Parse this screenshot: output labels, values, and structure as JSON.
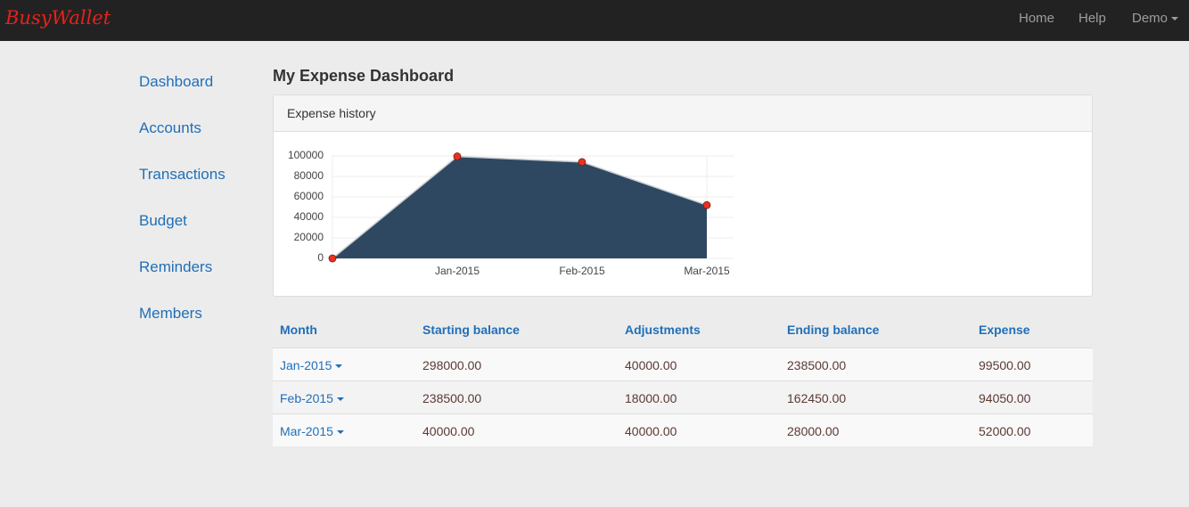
{
  "navbar": {
    "brand": "BusyWallet",
    "links": [
      "Home",
      "Help",
      "Demo"
    ]
  },
  "sidebar": {
    "items": [
      "Dashboard",
      "Accounts",
      "Transactions",
      "Budget",
      "Reminders",
      "Members"
    ]
  },
  "page_title": "My Expense Dashboard",
  "panel_title": "Expense history",
  "chart_data": {
    "type": "area",
    "categories": [
      null,
      "Jan-2015",
      "Feb-2015",
      "Mar-2015"
    ],
    "values": [
      0,
      99500,
      94050,
      52000
    ],
    "color": "#2e4862",
    "line_color": "#c8ccd0",
    "point_color": "#e8321f",
    "ylim": [
      0,
      100000
    ],
    "yticks": [
      0,
      20000,
      40000,
      60000,
      80000,
      100000
    ],
    "grid": true
  },
  "table": {
    "columns": [
      "Month",
      "Starting balance",
      "Adjustments",
      "Ending balance",
      "Expense"
    ],
    "rows": [
      [
        "Jan-2015",
        "298000.00",
        "40000.00",
        "238500.00",
        "99500.00"
      ],
      [
        "Feb-2015",
        "238500.00",
        "18000.00",
        "162450.00",
        "94050.00"
      ],
      [
        "Mar-2015",
        "40000.00",
        "40000.00",
        "28000.00",
        "52000.00"
      ]
    ]
  }
}
